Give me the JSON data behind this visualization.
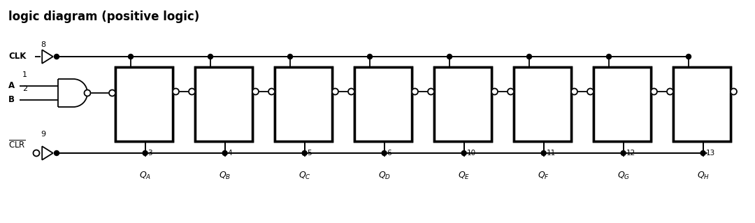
{
  "title": "logic diagram (positive logic)",
  "title_fontsize": 12,
  "bg_color": "#ffffff",
  "line_color": "#000000",
  "text_color": "#1a4080",
  "pin_labels": [
    "3",
    "4",
    "5",
    "6",
    "10",
    "11",
    "12",
    "13"
  ],
  "q_labels": [
    "A",
    "B",
    "C",
    "D",
    "E",
    "F",
    "G",
    "H"
  ],
  "clk_label": "CLK",
  "clk_pin": "8",
  "a_label": "A",
  "a_pin": "1",
  "b_label": "B",
  "b_pin": "2",
  "clr_pin": "9",
  "figsize": [
    10.8,
    3.19
  ],
  "dpi": 100
}
